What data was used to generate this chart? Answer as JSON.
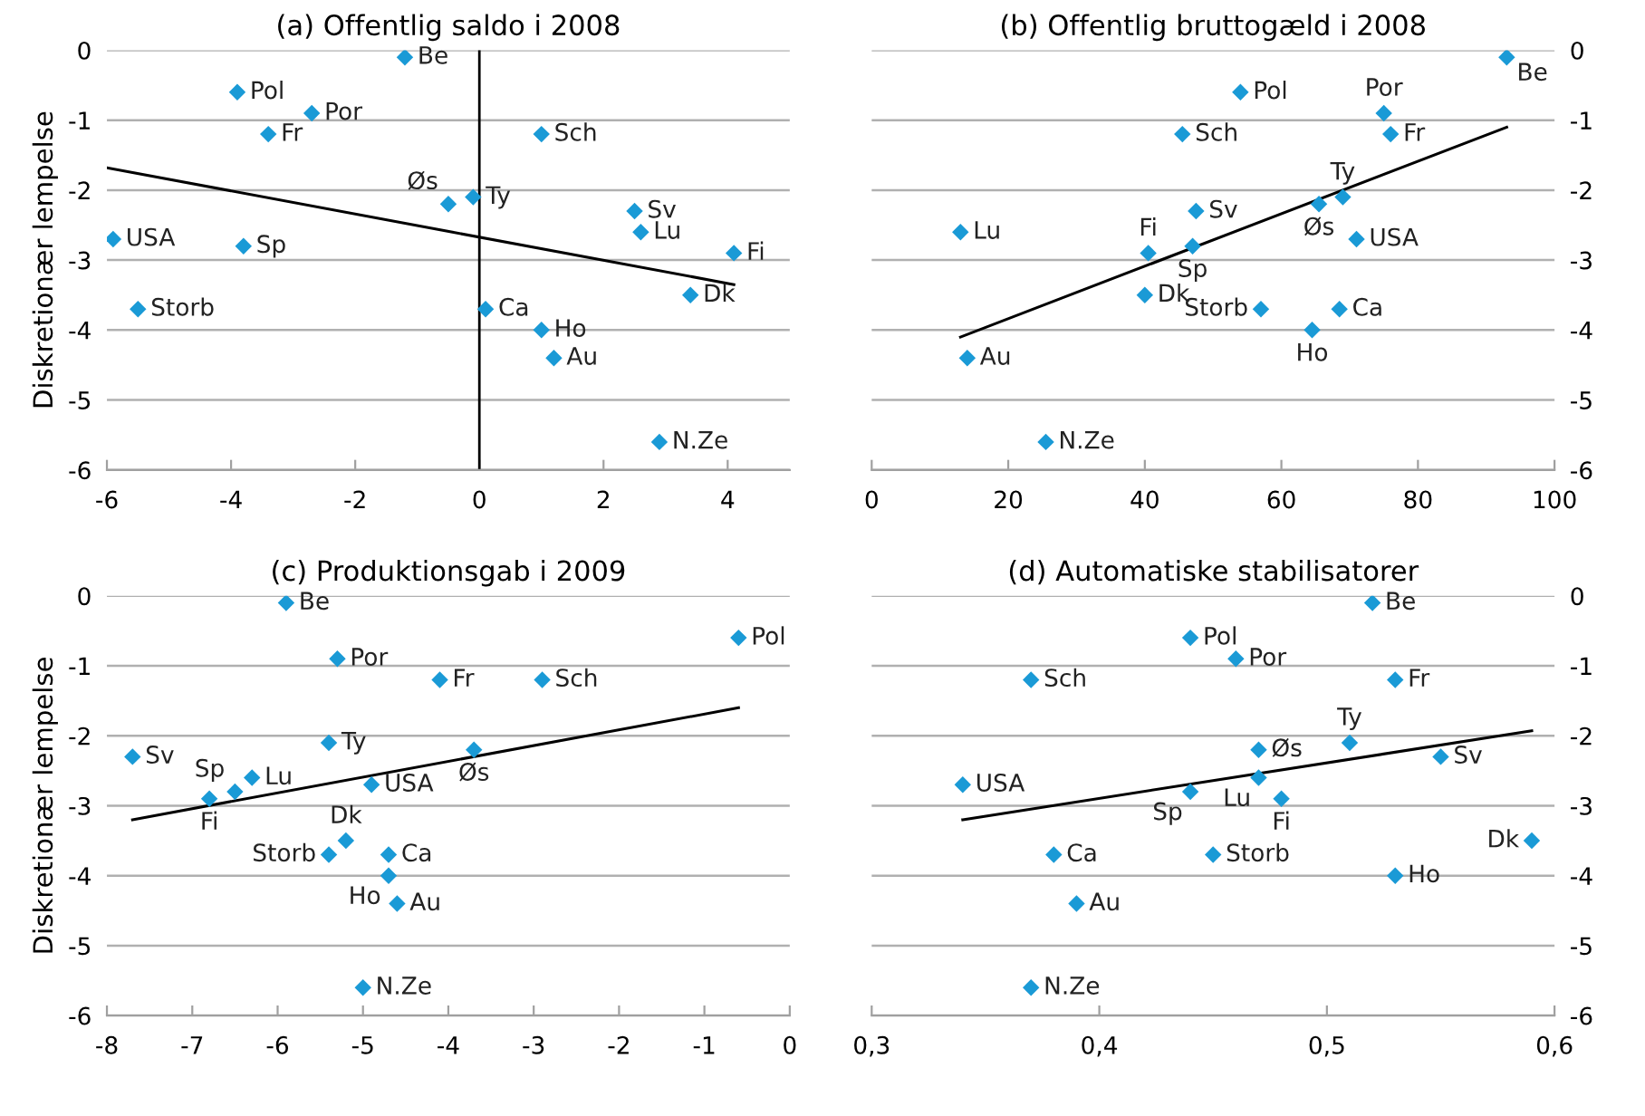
{
  "chart_data": [
    {
      "type": "scatter",
      "title": "(a) Offentlig saldo i 2008",
      "ylabel": "Diskretionær lempelse",
      "xlim": [
        -6,
        5
      ],
      "xticks": [
        -6,
        -4,
        -2,
        0,
        2,
        4
      ],
      "ylim": [
        -6,
        0
      ],
      "yticks": [
        -6,
        -5,
        -4,
        -3,
        -2,
        -1,
        0
      ],
      "grid": "y",
      "marker": "diamond",
      "ref_lines": [
        {
          "axis": "x",
          "value": 0,
          "color": "#000000"
        }
      ],
      "series": [
        {
          "color": "#1a9ad6",
          "x": [
            -1.2,
            -3.9,
            -2.7,
            -3.4,
            1.0,
            -0.5,
            -0.1,
            2.5,
            2.6,
            -5.9,
            -3.8,
            4.1,
            3.4,
            0.1,
            -5.5,
            1.0,
            1.2,
            2.9
          ],
          "values": [
            -0.1,
            -0.6,
            -0.9,
            -1.2,
            -1.2,
            -2.2,
            -2.1,
            -2.3,
            -2.6,
            -2.7,
            -2.8,
            -2.9,
            -3.5,
            -3.7,
            -3.7,
            -4.0,
            -4.4,
            -5.6
          ]
        },
        {
          "type": "line",
          "color": "#000000",
          "marker": "none",
          "x": [
            -6,
            4.1
          ],
          "values": [
            -1.68,
            -3.35
          ]
        }
      ],
      "annotations": [
        {
          "text": "Be",
          "x": -1.2,
          "y": -0.1
        },
        {
          "text": "Pol",
          "x": -3.9,
          "y": -0.6
        },
        {
          "text": "Por",
          "x": -2.7,
          "y": -0.9
        },
        {
          "text": "Fr",
          "x": -3.4,
          "y": -1.2
        },
        {
          "text": "Sch",
          "x": 1.0,
          "y": -1.2
        },
        {
          "text": "Øs",
          "x": -0.5,
          "y": -2.2
        },
        {
          "text": "Ty",
          "x": -0.1,
          "y": -2.1
        },
        {
          "text": "Sv",
          "x": 2.5,
          "y": -2.3
        },
        {
          "text": "Lu",
          "x": 2.6,
          "y": -2.6
        },
        {
          "text": "USA",
          "x": -5.9,
          "y": -2.7
        },
        {
          "text": "Sp",
          "x": -3.8,
          "y": -2.8
        },
        {
          "text": "Fi",
          "x": 4.1,
          "y": -2.9
        },
        {
          "text": "Dk",
          "x": 3.4,
          "y": -3.5
        },
        {
          "text": "Ca",
          "x": 0.1,
          "y": -3.7
        },
        {
          "text": "Storb",
          "x": -5.5,
          "y": -3.7
        },
        {
          "text": "Ho",
          "x": 1.0,
          "y": -4.0
        },
        {
          "text": "Au",
          "x": 1.2,
          "y": -4.4
        },
        {
          "text": "N.Ze",
          "x": 2.9,
          "y": -5.6
        }
      ]
    },
    {
      "type": "scatter",
      "title": "(b) Offentlig bruttogæld i 2008",
      "xlim": [
        0,
        100
      ],
      "xticks": [
        0,
        20,
        40,
        60,
        80,
        100
      ],
      "ylim": [
        -6,
        0
      ],
      "yticks": [
        -6,
        -5,
        -4,
        -3,
        -2,
        -1,
        0
      ],
      "grid": "y",
      "marker": "diamond",
      "series": [
        {
          "color": "#1a9ad6",
          "x": [
            93,
            54,
            75,
            76,
            45.5,
            65.5,
            69,
            47.5,
            13,
            71,
            47,
            40.5,
            40,
            68.5,
            57,
            64.5,
            14,
            25.5
          ],
          "values": [
            -0.1,
            -0.6,
            -0.9,
            -1.2,
            -1.2,
            -2.2,
            -2.1,
            -2.3,
            -2.6,
            -2.7,
            -2.8,
            -2.9,
            -3.5,
            -3.7,
            -3.7,
            -4.0,
            -4.4,
            -5.6
          ]
        },
        {
          "type": "line",
          "color": "#000000",
          "marker": "none",
          "x": [
            13,
            93
          ],
          "values": [
            -4.1,
            -1.1
          ]
        }
      ],
      "annotations": [
        {
          "text": "Be",
          "x": 93,
          "y": -0.1
        },
        {
          "text": "Pol",
          "x": 54,
          "y": -0.6
        },
        {
          "text": "Por",
          "x": 75,
          "y": -0.9
        },
        {
          "text": "Fr",
          "x": 76,
          "y": -1.2
        },
        {
          "text": "Sch",
          "x": 45.5,
          "y": -1.2
        },
        {
          "text": "Øs",
          "x": 65.5,
          "y": -2.2
        },
        {
          "text": "Ty",
          "x": 69,
          "y": -2.1
        },
        {
          "text": "Sv",
          "x": 47.5,
          "y": -2.3
        },
        {
          "text": "Lu",
          "x": 13,
          "y": -2.6
        },
        {
          "text": "USA",
          "x": 71,
          "y": -2.7
        },
        {
          "text": "Sp",
          "x": 47,
          "y": -2.8
        },
        {
          "text": "Fi",
          "x": 40.5,
          "y": -2.9
        },
        {
          "text": "Dk",
          "x": 40,
          "y": -3.5
        },
        {
          "text": "Ca",
          "x": 68.5,
          "y": -3.7
        },
        {
          "text": "Storb",
          "x": 57,
          "y": -3.7
        },
        {
          "text": "Ho",
          "x": 64.5,
          "y": -4.0
        },
        {
          "text": "Au",
          "x": 14,
          "y": -4.4
        },
        {
          "text": "N.Ze",
          "x": 25.5,
          "y": -5.6
        }
      ]
    },
    {
      "type": "scatter",
      "title": "(c) Produktionsgab i 2009",
      "ylabel": "Diskretionær lempelse",
      "xlim": [
        -8,
        0
      ],
      "xticks": [
        -8,
        -7,
        -6,
        -5,
        -4,
        -3,
        -2,
        -1,
        0
      ],
      "ylim": [
        -6,
        0
      ],
      "yticks": [
        -6,
        -5,
        -4,
        -3,
        -2,
        -1,
        0
      ],
      "grid": "y",
      "marker": "diamond",
      "series": [
        {
          "color": "#1a9ad6",
          "x": [
            -5.9,
            -0.6,
            -5.3,
            -4.1,
            -2.9,
            -3.7,
            -5.4,
            -7.7,
            -6.3,
            -4.9,
            -6.5,
            -6.8,
            -5.2,
            -4.7,
            -5.4,
            -4.7,
            -4.6,
            -5.0
          ],
          "values": [
            -0.1,
            -0.6,
            -0.9,
            -1.2,
            -1.2,
            -2.2,
            -2.1,
            -2.3,
            -2.6,
            -2.7,
            -2.8,
            -2.9,
            -3.5,
            -3.7,
            -3.7,
            -4.0,
            -4.4,
            -5.6
          ]
        },
        {
          "type": "line",
          "color": "#000000",
          "marker": "none",
          "x": [
            -7.7,
            -0.6
          ],
          "values": [
            -3.2,
            -1.6
          ]
        }
      ],
      "annotations": [
        {
          "text": "Be",
          "x": -5.9,
          "y": -0.1
        },
        {
          "text": "Pol",
          "x": -0.6,
          "y": -0.6
        },
        {
          "text": "Por",
          "x": -5.3,
          "y": -0.9
        },
        {
          "text": "Fr",
          "x": -4.1,
          "y": -1.2
        },
        {
          "text": "Sch",
          "x": -2.9,
          "y": -1.2
        },
        {
          "text": "Øs",
          "x": -3.7,
          "y": -2.2
        },
        {
          "text": "Ty",
          "x": -5.4,
          "y": -2.1
        },
        {
          "text": "Sv",
          "x": -7.7,
          "y": -2.3
        },
        {
          "text": "Lu",
          "x": -6.3,
          "y": -2.6
        },
        {
          "text": "USA",
          "x": -4.9,
          "y": -2.7
        },
        {
          "text": "Sp",
          "x": -6.5,
          "y": -2.8
        },
        {
          "text": "Fi",
          "x": -6.8,
          "y": -2.9
        },
        {
          "text": "Dk",
          "x": -5.2,
          "y": -3.5
        },
        {
          "text": "Ca",
          "x": -4.7,
          "y": -3.7
        },
        {
          "text": "Storb",
          "x": -5.4,
          "y": -3.7
        },
        {
          "text": "Ho",
          "x": -4.7,
          "y": -4.0
        },
        {
          "text": "Au",
          "x": -4.6,
          "y": -4.4
        },
        {
          "text": "N.Ze",
          "x": -5.0,
          "y": -5.6
        }
      ]
    },
    {
      "type": "scatter",
      "title": "(d) Automatiske stabilisatorer",
      "xlim": [
        0.3,
        0.6
      ],
      "xticks": [
        {
          "value": 0.3,
          "label": "0,3"
        },
        {
          "value": 0.4,
          "label": "0,4"
        },
        {
          "value": 0.5,
          "label": "0,5"
        },
        {
          "value": 0.6,
          "label": "0,6"
        }
      ],
      "ylim": [
        -6,
        0
      ],
      "yticks": [
        -6,
        -5,
        -4,
        -3,
        -2,
        -1,
        0
      ],
      "grid": "y",
      "marker": "diamond",
      "series": [
        {
          "color": "#1a9ad6",
          "x": [
            0.52,
            0.44,
            0.46,
            0.53,
            0.37,
            0.47,
            0.51,
            0.55,
            0.47,
            0.34,
            0.44,
            0.48,
            0.59,
            0.38,
            0.45,
            0.53,
            0.39,
            0.37
          ],
          "values": [
            -0.1,
            -0.6,
            -0.9,
            -1.2,
            -1.2,
            -2.2,
            -2.1,
            -2.3,
            -2.6,
            -2.7,
            -2.8,
            -2.9,
            -3.5,
            -3.7,
            -3.7,
            -4.0,
            -4.4,
            -5.6
          ]
        },
        {
          "type": "line",
          "color": "#000000",
          "marker": "none",
          "x": [
            0.34,
            0.59
          ],
          "values": [
            -3.2,
            -1.93
          ]
        }
      ],
      "annotations": [
        {
          "text": "Be",
          "x": 0.52,
          "y": -0.1
        },
        {
          "text": "Pol",
          "x": 0.44,
          "y": -0.6
        },
        {
          "text": "Por",
          "x": 0.46,
          "y": -0.9
        },
        {
          "text": "Fr",
          "x": 0.53,
          "y": -1.2
        },
        {
          "text": "Sch",
          "x": 0.37,
          "y": -1.2
        },
        {
          "text": "Øs",
          "x": 0.47,
          "y": -2.2
        },
        {
          "text": "Ty",
          "x": 0.51,
          "y": -2.1
        },
        {
          "text": "Sv",
          "x": 0.55,
          "y": -2.3
        },
        {
          "text": "Lu",
          "x": 0.47,
          "y": -2.6
        },
        {
          "text": "USA",
          "x": 0.34,
          "y": -2.7
        },
        {
          "text": "Sp",
          "x": 0.44,
          "y": -2.8
        },
        {
          "text": "Fi",
          "x": 0.48,
          "y": -2.9
        },
        {
          "text": "Dk",
          "x": 0.59,
          "y": -3.5
        },
        {
          "text": "Ca",
          "x": 0.38,
          "y": -3.7
        },
        {
          "text": "Storb",
          "x": 0.45,
          "y": -3.7
        },
        {
          "text": "Ho",
          "x": 0.53,
          "y": -4.0
        },
        {
          "text": "Au",
          "x": 0.39,
          "y": -4.4
        },
        {
          "text": "N.Ze",
          "x": 0.37,
          "y": -5.6
        }
      ]
    }
  ]
}
